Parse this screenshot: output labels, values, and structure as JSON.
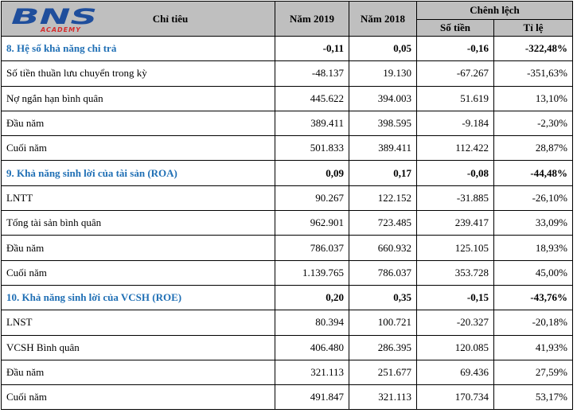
{
  "logo": {
    "main": "BNS",
    "sub": "ACADEMY",
    "color": "#1f4e9c",
    "accent": "#d62b2b"
  },
  "header": {
    "col_label": "Chỉ tiêu",
    "year1": "Năm 2019",
    "year2": "Năm 2018",
    "diff": "Chênh lệch",
    "amount": "Số tiền",
    "ratio": "Tỉ lệ"
  },
  "rows": [
    {
      "label": "8. Hệ số khả năng chi trả",
      "section": true,
      "y2019": "-0,11",
      "y2018": "0,05",
      "amount": "-0,16",
      "ratio": "-322,48%"
    },
    {
      "label": "Số tiền thuần lưu chuyển trong kỳ",
      "section": false,
      "y2019": "-48.137",
      "y2018": "19.130",
      "amount": "-67.267",
      "ratio": "-351,63%"
    },
    {
      "label": "Nợ ngắn hạn bình quân",
      "section": false,
      "y2019": "445.622",
      "y2018": "394.003",
      "amount": "51.619",
      "ratio": "13,10%"
    },
    {
      "label": "Đầu năm",
      "section": false,
      "y2019": "389.411",
      "y2018": "398.595",
      "amount": "-9.184",
      "ratio": "-2,30%"
    },
    {
      "label": "Cuối năm",
      "section": false,
      "y2019": "501.833",
      "y2018": "389.411",
      "amount": "112.422",
      "ratio": "28,87%"
    },
    {
      "label": "9. Khả năng sinh lời của tài sản (ROA)",
      "section": true,
      "y2019": "0,09",
      "y2018": "0,17",
      "amount": "-0,08",
      "ratio": "-44,48%"
    },
    {
      "label": "LNTT",
      "section": false,
      "y2019": "90.267",
      "y2018": "122.152",
      "amount": "-31.885",
      "ratio": "-26,10%"
    },
    {
      "label": "Tổng tài sản bình quân",
      "section": false,
      "y2019": "962.901",
      "y2018": "723.485",
      "amount": "239.417",
      "ratio": "33,09%"
    },
    {
      "label": "Đầu năm",
      "section": false,
      "y2019": "786.037",
      "y2018": "660.932",
      "amount": "125.105",
      "ratio": "18,93%"
    },
    {
      "label": "Cuối năm",
      "section": false,
      "y2019": "1.139.765",
      "y2018": "786.037",
      "amount": "353.728",
      "ratio": "45,00%"
    },
    {
      "label": "10. Khả năng sinh lời của VCSH (ROE)",
      "section": true,
      "y2019": "0,20",
      "y2018": "0,35",
      "amount": "-0,15",
      "ratio": "-43,76%"
    },
    {
      "label": "LNST",
      "section": false,
      "y2019": "80.394",
      "y2018": "100.721",
      "amount": "-20.327",
      "ratio": "-20,18%"
    },
    {
      "label": "VCSH Bình quân",
      "section": false,
      "y2019": "406.480",
      "y2018": "286.395",
      "amount": "120.085",
      "ratio": "41,93%"
    },
    {
      "label": "Đầu năm",
      "section": false,
      "y2019": "321.113",
      "y2018": "251.677",
      "amount": "69.436",
      "ratio": "27,59%"
    },
    {
      "label": "Cuối năm",
      "section": false,
      "y2019": "491.847",
      "y2018": "321.113",
      "amount": "170.734",
      "ratio": "53,17%"
    }
  ]
}
